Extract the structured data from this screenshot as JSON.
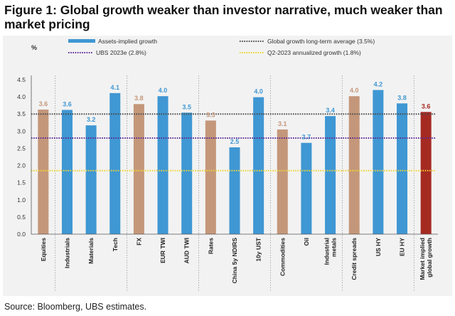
{
  "title": "Figure 1: Global growth weaker than investor narrative, much weaker than market pricing",
  "source": "Source: Bloomberg, UBS estimates.",
  "colors": {
    "blue": "#3f97d3",
    "tan": "#c4977a",
    "red": "#a52a22",
    "grey_line": "#4a4a4a",
    "purple_line": "#5b2b96",
    "yellow_line": "#f0d52e"
  },
  "chart_data": {
    "type": "bar",
    "ylabel": "%",
    "ylim": [
      0,
      4.5
    ],
    "yticks": [
      "0.0",
      "0.5",
      "1.0",
      "1.5",
      "2.0",
      "2.5",
      "3.0",
      "3.5",
      "4.0",
      "4.5"
    ],
    "categories": [
      "Equities",
      "Industrials",
      "Materials",
      "Tech",
      "FX",
      "EUR TWI",
      "AUD TWI",
      "Rates",
      "China 5y NDIRS",
      "10y UST",
      "Commodities",
      "Oil",
      "Industrial metals",
      "Credit spreads",
      "US HY",
      "EU HY",
      "Market implied global growth"
    ],
    "values": [
      3.6,
      3.6,
      3.2,
      4.1,
      3.8,
      4.0,
      3.5,
      3.3,
      2.5,
      4.0,
      3.1,
      2.7,
      3.4,
      4.0,
      4.2,
      3.8,
      3.6
    ],
    "bar_values": [
      3.63,
      3.62,
      3.17,
      4.11,
      3.79,
      4.02,
      3.54,
      3.31,
      2.53,
      3.99,
      3.05,
      2.66,
      3.44,
      4.02,
      4.2,
      3.81,
      3.56
    ],
    "labels": [
      "3.6",
      "3.6",
      "3.2",
      "4.1",
      "3.8",
      "4.0",
      "3.5",
      "3.3",
      "2.5",
      "4.0",
      "3.1",
      "2.7",
      "3.4",
      "4.0",
      "4.2",
      "3.8",
      "3.6"
    ],
    "bar_kinds": [
      "summary",
      "asset",
      "asset",
      "asset",
      "summary",
      "asset",
      "asset",
      "summary",
      "asset",
      "asset",
      "summary",
      "asset",
      "asset",
      "summary",
      "asset",
      "asset",
      "total"
    ],
    "reference_lines": [
      {
        "name": "Global growth long-term average (3.5%)",
        "value": 3.5,
        "style": "grey-dotted"
      },
      {
        "name": "UBS 2023e (2.8%)",
        "value": 2.8,
        "style": "purple-dotted"
      },
      {
        "name": "Q2-2023 annualized growth (1.8%)",
        "value": 1.85,
        "style": "yellow-dotted"
      }
    ],
    "legend": {
      "bar_series": "Assets-implied growth",
      "ref_long_term": "Global growth long-term average (3.5%)",
      "ref_ubs": "UBS 2023e (2.8%)",
      "ref_q2": "Q2-2023 annualized growth (1.8%)"
    },
    "group_separators_after": [
      0,
      3,
      6,
      9,
      12,
      15
    ]
  }
}
